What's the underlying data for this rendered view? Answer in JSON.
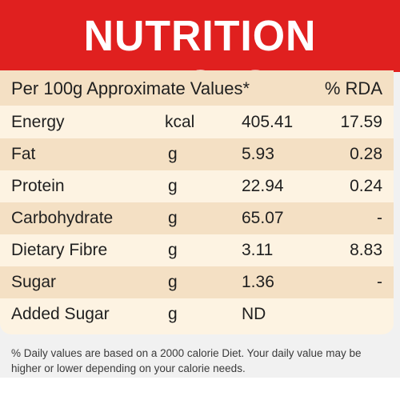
{
  "header": {
    "title": "NUTRITION FACTS"
  },
  "table": {
    "header": {
      "label": "Per 100g Approximate Values*",
      "rda": "% RDA"
    },
    "rows": [
      {
        "name": "Energy",
        "unit": "kcal",
        "value": "405.41",
        "rda": "17.59"
      },
      {
        "name": "Fat",
        "unit": "g",
        "value": "5.93",
        "rda": "0.28"
      },
      {
        "name": "Protein",
        "unit": "g",
        "value": "22.94",
        "rda": "0.24"
      },
      {
        "name": "Carbohydrate",
        "unit": "g",
        "value": "65.07",
        "rda": "-"
      },
      {
        "name": "Dietary Fibre",
        "unit": "g",
        "value": "3.11",
        "rda": "8.83"
      },
      {
        "name": "Sugar",
        "unit": "g",
        "value": "1.36",
        "rda": "-"
      },
      {
        "name": "Added Sugar",
        "unit": "g",
        "value": "ND",
        "rda": ""
      }
    ]
  },
  "footer": {
    "note": "% Daily values are based on a 2000 calorie Diet. Your daily value may be higher or lower depending on your calorie needs."
  },
  "colors": {
    "header_red": "#e0201f",
    "shaded_row": "#f4e0c4",
    "light_row": "#fdf3e2"
  }
}
